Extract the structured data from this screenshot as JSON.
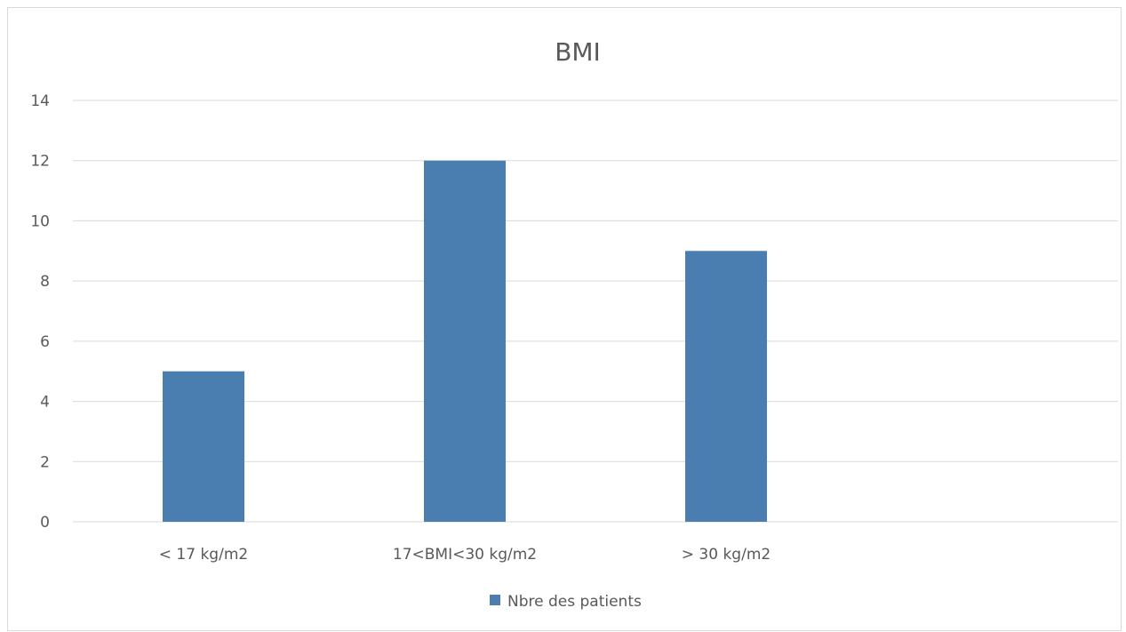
{
  "chart_data": {
    "type": "bar",
    "title": "BMI",
    "xlabel": "",
    "ylabel": "",
    "categories": [
      "< 17 kg/m2",
      "17<BMI<30 kg/m2",
      "> 30 kg/m2",
      ""
    ],
    "series": [
      {
        "name": "Nbre des patients",
        "values": [
          5,
          12,
          9,
          null
        ],
        "color": "#4a7eb0"
      }
    ],
    "ylim": [
      0,
      14
    ],
    "yticks": [
      "0",
      "2",
      "4",
      "6",
      "8",
      "10",
      "12",
      "14"
    ],
    "grid": true,
    "legend_position": "bottom"
  },
  "colors": {
    "bar": "#4a7eb0",
    "gridline": "#d9d9d9",
    "text": "#595959",
    "frame": "#d9d9d9"
  }
}
